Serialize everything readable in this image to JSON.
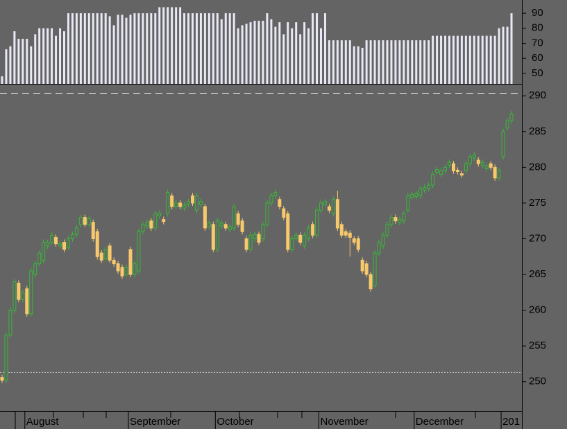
{
  "chart_data": [
    {
      "type": "candlestick",
      "open": [
        250.6,
        250.2,
        256.5,
        260,
        263.8,
        261.5,
        263,
        259.5,
        265,
        266.5,
        267,
        269,
        269.5,
        270.2,
        269,
        269.5,
        268.8,
        270,
        270.6,
        272,
        273,
        272,
        272.3,
        271,
        268,
        267.2,
        269,
        267,
        266.5,
        266,
        265,
        268.5,
        265,
        265.5,
        271,
        271.8,
        272.5,
        271.5,
        273.2,
        272.7,
        273.5,
        276,
        274.5,
        275,
        274.3,
        274.8,
        276,
        274,
        274.8,
        274.5,
        271.7,
        272,
        268.5,
        271.8,
        272,
        271.3,
        271.5,
        273.5,
        272.5,
        270,
        268.5,
        270,
        270.6,
        270,
        272,
        275,
        276,
        275.5,
        274.2,
        273.5,
        268.5,
        270,
        270.5,
        269,
        270,
        272,
        270.5,
        274,
        274.8,
        274.5,
        273.5,
        275.5,
        272,
        271,
        270.8,
        270,
        270,
        267,
        266.5,
        265,
        263.5,
        268,
        269,
        270.5,
        272,
        273,
        272.3,
        272.5,
        274,
        275.8,
        275.9,
        276,
        276.8,
        277,
        277.5,
        279.3,
        279,
        279.5,
        280.3,
        280.5,
        279.6,
        279.1,
        279.5,
        280.5,
        281.3,
        281,
        280.3,
        279.8,
        280.5,
        280,
        278.5,
        281.5,
        285.5,
        286.5
      ],
      "high": [
        251,
        256.9,
        260.4,
        264.4,
        264.2,
        262.9,
        263.4,
        265.9,
        266.9,
        268.4,
        269.9,
        269.9,
        270.9,
        270.6,
        269.7,
        269.9,
        270.4,
        271,
        271.9,
        273.4,
        273.4,
        273.2,
        272.7,
        271.4,
        268.4,
        268.9,
        269.4,
        267.4,
        266.9,
        266.4,
        266.4,
        268.9,
        266.9,
        271.4,
        272.4,
        272.7,
        272.9,
        273.9,
        274,
        273.1,
        276.9,
        276.4,
        275.4,
        275.4,
        275.1,
        275.6,
        276.4,
        276.4,
        275.6,
        274.9,
        272.6,
        272.4,
        272.9,
        272.6,
        272.4,
        272.1,
        274.9,
        273.9,
        272.9,
        270.4,
        270.9,
        271,
        271,
        272.4,
        275.4,
        276.4,
        276.9,
        275.9,
        274.6,
        273.9,
        270.4,
        270.9,
        270.9,
        270.9,
        271.9,
        272.4,
        274.4,
        275.4,
        275.6,
        274.9,
        275.9,
        276.7,
        272.4,
        271.4,
        271.2,
        270.4,
        270.4,
        267.4,
        266.9,
        265.4,
        268.4,
        269.9,
        270.9,
        272.4,
        273.4,
        273.4,
        273.1,
        273.9,
        276.4,
        276.6,
        276.7,
        277.4,
        277.6,
        277.9,
        279.4,
        280.1,
        279.9,
        280.4,
        281.1,
        280.9,
        280,
        279.5,
        280.9,
        281.9,
        282.1,
        281.4,
        281.1,
        280.6,
        280.9,
        280.4,
        279.9,
        285.4,
        286.9,
        287.9
      ],
      "low": [
        249.8,
        249.8,
        256.1,
        259.6,
        261.1,
        261.1,
        259.1,
        259.1,
        264.6,
        266.1,
        266.6,
        268.6,
        269.1,
        268.9,
        268.6,
        268.1,
        268.4,
        269.6,
        270.2,
        271.6,
        271.6,
        271.6,
        269.6,
        267.1,
        266.6,
        266.8,
        266.6,
        266.1,
        265.1,
        264.4,
        264.6,
        264.6,
        264.6,
        265.1,
        270.6,
        271.4,
        271.1,
        271.1,
        272.8,
        272,
        273.1,
        274.1,
        274.1,
        274.1,
        273.9,
        274.4,
        274.6,
        273.6,
        274.4,
        271.1,
        271.3,
        268.1,
        268.1,
        271.4,
        271.1,
        270.9,
        271.1,
        271.6,
        270.6,
        268.1,
        268.1,
        269.6,
        269.1,
        269.6,
        271.6,
        274.6,
        275.6,
        274.1,
        272.6,
        268.1,
        268.1,
        269.6,
        269.1,
        268.6,
        269.6,
        270.1,
        270.1,
        273.6,
        274.4,
        273.6,
        273.1,
        271.1,
        270.1,
        270.1,
        267.5,
        269.1,
        268.1,
        265.1,
        264.6,
        262.6,
        263.1,
        267.6,
        268.6,
        270.1,
        271.6,
        272.1,
        271.9,
        272.1,
        273.6,
        275.4,
        275.5,
        275.6,
        276.4,
        276.6,
        277.1,
        278.9,
        278.6,
        279.1,
        279.9,
        279.1,
        279,
        278.5,
        279.1,
        280.1,
        280.9,
        280.1,
        279.9,
        279.4,
        279.6,
        278.1,
        278.1,
        281.1,
        285.1,
        286.1
      ],
      "close": [
        250.2,
        256.5,
        260,
        264,
        261.5,
        262.5,
        259.5,
        265.5,
        266.5,
        268,
        269.5,
        269.5,
        270.5,
        269.3,
        269.3,
        268.5,
        270,
        270.6,
        271.5,
        273,
        272,
        272.8,
        270,
        267.5,
        267,
        268.5,
        267,
        266.5,
        265.5,
        264.8,
        266,
        265,
        266.5,
        271,
        272,
        272.3,
        271.5,
        273.5,
        273.6,
        272.4,
        276.5,
        274.5,
        275,
        274.5,
        274.7,
        275.2,
        275,
        276,
        275.2,
        271.5,
        272.2,
        268.5,
        272.5,
        272.2,
        271.5,
        271.7,
        274.5,
        272,
        271,
        268.5,
        270.5,
        270.6,
        269.5,
        272,
        275,
        276,
        276.5,
        274.5,
        273,
        268.5,
        270,
        270.5,
        269.5,
        270.5,
        271.5,
        270.5,
        274,
        275,
        275.2,
        274,
        275.5,
        271.5,
        270.5,
        270.5,
        270.2,
        269.5,
        268.5,
        265.5,
        265,
        263,
        268,
        269.5,
        270.5,
        272,
        273,
        272.5,
        272.7,
        273.5,
        276,
        276.2,
        276.3,
        277,
        277.2,
        277.5,
        279,
        279.7,
        279.5,
        280,
        280.7,
        279.5,
        279.4,
        278.9,
        280.5,
        281.5,
        281.7,
        280.5,
        280.7,
        280.2,
        280,
        278.5,
        279.5,
        285,
        286.5,
        287.5
      ],
      "up_color": "#39b839",
      "down_color": "#f7c96c",
      "reference_line": 251.3,
      "ylim": [
        246,
        290.8
      ],
      "yticks": [
        250,
        255,
        260,
        265,
        270,
        275,
        280,
        285,
        290
      ],
      "xticks": [
        {
          "value": 5.5,
          "label": "August"
        },
        {
          "value": 30.5,
          "label": "September"
        },
        {
          "value": 51.5,
          "label": "October"
        },
        {
          "value": 76.5,
          "label": "November"
        },
        {
          "value": 99.5,
          "label": "December"
        },
        {
          "value": 120.5,
          "label": "201"
        }
      ]
    },
    {
      "type": "bar",
      "values": [
        48,
        66,
        68,
        78,
        73,
        73,
        73,
        68,
        76,
        80,
        80,
        80,
        80,
        75,
        80,
        78,
        90,
        90,
        90,
        90,
        90,
        90,
        90,
        90,
        90,
        90,
        88,
        82,
        89,
        89,
        87,
        89,
        90,
        90,
        90,
        90,
        90,
        90,
        94,
        94,
        94,
        94,
        94,
        94,
        90,
        90,
        90,
        90,
        90,
        90,
        90,
        90,
        90,
        86,
        90,
        90,
        90,
        80,
        82,
        83,
        84,
        85,
        85,
        85,
        90,
        86,
        81,
        84,
        76,
        84,
        80,
        84,
        76,
        84,
        80,
        90,
        90,
        80,
        90,
        72,
        72,
        72,
        72,
        72,
        72,
        68,
        68,
        67,
        72,
        72,
        72,
        72,
        72,
        72,
        72,
        72,
        72,
        72,
        72,
        72,
        72,
        72,
        72,
        72,
        75,
        75,
        75,
        75,
        75,
        75,
        75,
        75,
        75,
        75,
        75,
        75,
        75,
        75,
        75,
        75,
        80,
        81,
        81,
        90
      ],
      "color": "#e8e8f6",
      "ylim": [
        43,
        96.5
      ],
      "yticks": [
        50,
        60,
        70,
        80,
        90
      ]
    }
  ]
}
